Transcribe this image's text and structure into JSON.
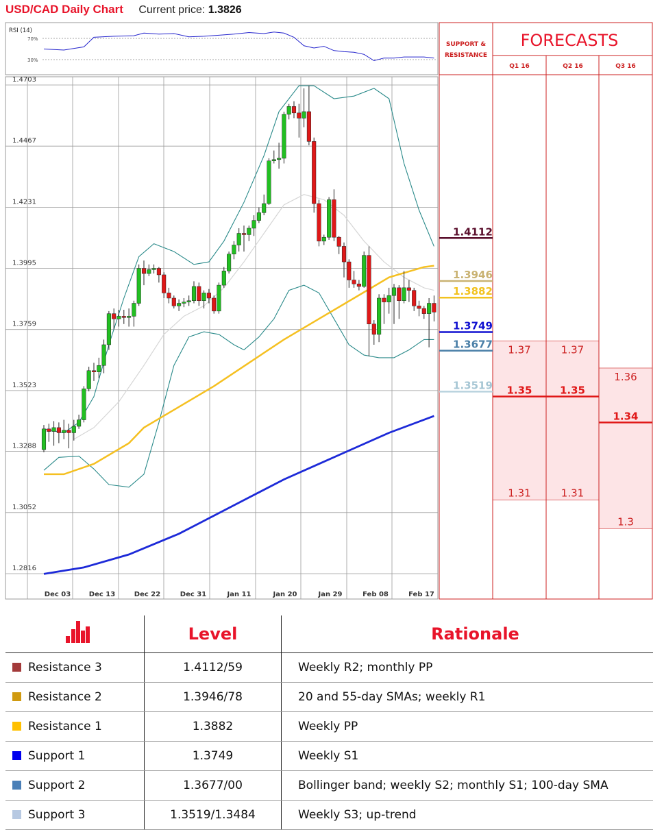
{
  "header": {
    "title": "USD/CAD Daily Chart",
    "current_price_label": "Current price:",
    "current_price": "1.3826"
  },
  "chart_data": {
    "type": "candlestick",
    "title": "USD/CAD Daily Chart",
    "y_ticks": [
      "1.4703",
      "1.4467",
      "1.4231",
      "1.3995",
      "1.3759",
      "1.3523",
      "1.3288",
      "1.3052",
      "1.2816"
    ],
    "ylim": [
      1.2816,
      1.4703
    ],
    "x_ticks": [
      "Dec 03",
      "Dec 13",
      "Dec 22",
      "Dec 31",
      "Jan 11",
      "Jan 20",
      "Jan 29",
      "Feb 08",
      "Feb 17"
    ],
    "grid": true,
    "candles": [
      [
        1.3295,
        1.3375,
        1.339,
        1.3285
      ],
      [
        1.3375,
        1.3365,
        1.3395,
        1.3325
      ],
      [
        1.3365,
        1.338,
        1.3405,
        1.331
      ],
      [
        1.338,
        1.336,
        1.34,
        1.332
      ],
      [
        1.336,
        1.337,
        1.341,
        1.3335
      ],
      [
        1.337,
        1.336,
        1.3395,
        1.33
      ],
      [
        1.336,
        1.3385,
        1.341,
        1.333
      ],
      [
        1.3385,
        1.341,
        1.343,
        1.3375
      ],
      [
        1.341,
        1.353,
        1.354,
        1.34
      ],
      [
        1.353,
        1.36,
        1.3615,
        1.352
      ],
      [
        1.36,
        1.3595,
        1.363,
        1.356
      ],
      [
        1.3595,
        1.362,
        1.365,
        1.357
      ],
      [
        1.362,
        1.37,
        1.372,
        1.359
      ],
      [
        1.37,
        1.382,
        1.383,
        1.368
      ],
      [
        1.382,
        1.38,
        1.384,
        1.376
      ],
      [
        1.38,
        1.381,
        1.3835,
        1.377
      ],
      [
        1.381,
        1.3805,
        1.3835,
        1.378
      ],
      [
        1.3805,
        1.381,
        1.384,
        1.377
      ],
      [
        1.381,
        1.386,
        1.387,
        1.377
      ],
      [
        1.386,
        1.3995,
        1.401,
        1.385
      ],
      [
        1.3995,
        1.3975,
        1.4025,
        1.393
      ],
      [
        1.3975,
        1.399,
        1.401,
        1.3965
      ],
      [
        1.399,
        1.3995,
        1.401,
        1.3975
      ],
      [
        1.3995,
        1.397,
        1.4,
        1.394
      ],
      [
        1.397,
        1.39,
        1.398,
        1.388
      ],
      [
        1.39,
        1.388,
        1.392,
        1.386
      ],
      [
        1.388,
        1.385,
        1.389,
        1.384
      ],
      [
        1.385,
        1.386,
        1.3875,
        1.383
      ],
      [
        1.386,
        1.3865,
        1.388,
        1.3845
      ],
      [
        1.3865,
        1.387,
        1.389,
        1.385
      ],
      [
        1.387,
        1.3925,
        1.3945,
        1.386
      ],
      [
        1.3925,
        1.387,
        1.394,
        1.385
      ],
      [
        1.387,
        1.39,
        1.391,
        1.384
      ],
      [
        1.39,
        1.388,
        1.3915,
        1.386
      ],
      [
        1.388,
        1.383,
        1.389,
        1.382
      ],
      [
        1.383,
        1.393,
        1.394,
        1.382
      ],
      [
        1.393,
        1.3985,
        1.4,
        1.392
      ],
      [
        1.3985,
        1.405,
        1.406,
        1.3975
      ],
      [
        1.405,
        1.4085,
        1.41,
        1.403
      ],
      [
        1.4085,
        1.413,
        1.415,
        1.406
      ],
      [
        1.413,
        1.4125,
        1.416,
        1.406
      ],
      [
        1.4125,
        1.415,
        1.416,
        1.41
      ],
      [
        1.415,
        1.418,
        1.42,
        1.412
      ],
      [
        1.418,
        1.421,
        1.423,
        1.417
      ],
      [
        1.421,
        1.4245,
        1.428,
        1.42
      ],
      [
        1.4245,
        1.441,
        1.442,
        1.424
      ],
      [
        1.441,
        1.4415,
        1.445,
        1.44
      ],
      [
        1.4415,
        1.442,
        1.448,
        1.438
      ],
      [
        1.442,
        1.459,
        1.46,
        1.44
      ],
      [
        1.459,
        1.462,
        1.463,
        1.457
      ],
      [
        1.462,
        1.4595,
        1.464,
        1.4575
      ],
      [
        1.4595,
        1.4575,
        1.463,
        1.45
      ],
      [
        1.4575,
        1.46,
        1.469,
        1.454
      ],
      [
        1.46,
        1.4485,
        1.47,
        1.447
      ],
      [
        1.4485,
        1.4245,
        1.45,
        1.421
      ],
      [
        1.4245,
        1.41,
        1.426,
        1.408
      ],
      [
        1.41,
        1.4115,
        1.4125,
        1.4085
      ],
      [
        1.4115,
        1.426,
        1.427,
        1.4105
      ],
      [
        1.426,
        1.4115,
        1.43,
        1.41
      ],
      [
        1.4115,
        1.408,
        1.412,
        1.405
      ],
      [
        1.408,
        1.402,
        1.4095,
        1.396
      ],
      [
        1.402,
        1.395,
        1.403,
        1.392
      ],
      [
        1.395,
        1.3935,
        1.3985,
        1.392
      ],
      [
        1.3935,
        1.3925,
        1.395,
        1.391
      ],
      [
        1.3925,
        1.4045,
        1.406,
        1.392
      ],
      [
        1.4045,
        1.378,
        1.408,
        1.3655
      ],
      [
        1.378,
        1.374,
        1.3795,
        1.37
      ],
      [
        1.374,
        1.388,
        1.3895,
        1.371
      ],
      [
        1.388,
        1.3865,
        1.3895,
        1.378
      ],
      [
        1.3865,
        1.389,
        1.392,
        1.382
      ],
      [
        1.389,
        1.392,
        1.3935,
        1.378
      ],
      [
        1.392,
        1.387,
        1.393,
        1.38
      ],
      [
        1.387,
        1.392,
        1.3985,
        1.386
      ],
      [
        1.392,
        1.391,
        1.395,
        1.3865
      ],
      [
        1.391,
        1.385,
        1.392,
        1.383
      ],
      [
        1.385,
        1.384,
        1.387,
        1.381
      ],
      [
        1.384,
        1.382,
        1.385,
        1.38
      ],
      [
        1.382,
        1.386,
        1.388,
        1.369
      ],
      [
        1.386,
        1.3826,
        1.389,
        1.379
      ]
    ],
    "sma_55": [
      [
        0,
        1.32
      ],
      [
        4,
        1.32
      ],
      [
        10,
        1.324
      ],
      [
        17,
        1.332
      ],
      [
        20,
        1.338
      ],
      [
        27,
        1.346
      ],
      [
        34,
        1.354
      ],
      [
        41,
        1.363
      ],
      [
        48,
        1.372
      ],
      [
        55,
        1.38
      ],
      [
        62,
        1.388
      ],
      [
        69,
        1.396
      ],
      [
        76,
        1.4
      ],
      [
        78,
        1.4005
      ]
    ],
    "sma_200": [
      [
        0,
        1.2815
      ],
      [
        8,
        1.284
      ],
      [
        17,
        1.289
      ],
      [
        27,
        1.297
      ],
      [
        34,
        1.304
      ],
      [
        41,
        1.311
      ],
      [
        48,
        1.318
      ],
      [
        55,
        1.324
      ],
      [
        62,
        1.33
      ],
      [
        69,
        1.336
      ],
      [
        78,
        1.3425
      ]
    ],
    "sma_20": [
      [
        6,
        1.3335
      ],
      [
        10,
        1.338
      ],
      [
        15,
        1.348
      ],
      [
        20,
        1.362
      ],
      [
        24,
        1.374
      ],
      [
        28,
        1.381
      ],
      [
        32,
        1.385
      ],
      [
        36,
        1.392
      ],
      [
        40,
        1.402
      ],
      [
        44,
        1.413
      ],
      [
        48,
        1.424
      ],
      [
        52,
        1.428
      ],
      [
        56,
        1.426
      ],
      [
        60,
        1.42
      ],
      [
        64,
        1.41
      ],
      [
        68,
        1.402
      ],
      [
        72,
        1.396
      ],
      [
        76,
        1.392
      ],
      [
        78,
        1.391
      ]
    ],
    "bollinger_upper": [
      [
        0,
        1.3375
      ],
      [
        4,
        1.336
      ],
      [
        7,
        1.34
      ],
      [
        10,
        1.35
      ],
      [
        13,
        1.37
      ],
      [
        16,
        1.388
      ],
      [
        19,
        1.404
      ],
      [
        22,
        1.409
      ],
      [
        26,
        1.406
      ],
      [
        30,
        1.401
      ],
      [
        33,
        1.402
      ],
      [
        36,
        1.41
      ],
      [
        40,
        1.425
      ],
      [
        44,
        1.443
      ],
      [
        47,
        1.46
      ],
      [
        51,
        1.47
      ],
      [
        54,
        1.47
      ],
      [
        58,
        1.465
      ],
      [
        62,
        1.466
      ],
      [
        66,
        1.469
      ],
      [
        69,
        1.465
      ],
      [
        72,
        1.44
      ],
      [
        75,
        1.422
      ],
      [
        78,
        1.408
      ]
    ],
    "bollinger_lower": [
      [
        0,
        1.3215
      ],
      [
        3,
        1.3265
      ],
      [
        7,
        1.327
      ],
      [
        10,
        1.322
      ],
      [
        13,
        1.316
      ],
      [
        17,
        1.315
      ],
      [
        20,
        1.32
      ],
      [
        23,
        1.34
      ],
      [
        26,
        1.362
      ],
      [
        29,
        1.373
      ],
      [
        32,
        1.375
      ],
      [
        35,
        1.374
      ],
      [
        38,
        1.37
      ],
      [
        40,
        1.368
      ],
      [
        43,
        1.373
      ],
      [
        46,
        1.38
      ],
      [
        49,
        1.391
      ],
      [
        52,
        1.393
      ],
      [
        55,
        1.39
      ],
      [
        58,
        1.38
      ],
      [
        61,
        1.37
      ],
      [
        64,
        1.366
      ],
      [
        67,
        1.365
      ],
      [
        70,
        1.365
      ],
      [
        73,
        1.368
      ],
      [
        76,
        1.372
      ],
      [
        78,
        1.372
      ]
    ],
    "rsi": {
      "label": "RSI (14)",
      "levels": [
        "70%",
        "30%"
      ],
      "values": [
        [
          0,
          50
        ],
        [
          4,
          48
        ],
        [
          8,
          54
        ],
        [
          10,
          72
        ],
        [
          14,
          74
        ],
        [
          18,
          75
        ],
        [
          20,
          80
        ],
        [
          23,
          78
        ],
        [
          26,
          79
        ],
        [
          29,
          73
        ],
        [
          32,
          74
        ],
        [
          35,
          76
        ],
        [
          38,
          78
        ],
        [
          41,
          81
        ],
        [
          44,
          79
        ],
        [
          46,
          82
        ],
        [
          48,
          80
        ],
        [
          50,
          72
        ],
        [
          52,
          56
        ],
        [
          54,
          52
        ],
        [
          56,
          55
        ],
        [
          58,
          47
        ],
        [
          60,
          45
        ],
        [
          62,
          44
        ],
        [
          64,
          40
        ],
        [
          66,
          28
        ],
        [
          68,
          33
        ],
        [
          70,
          33
        ],
        [
          72,
          35
        ],
        [
          74,
          35
        ],
        [
          76,
          35
        ],
        [
          78,
          33
        ]
      ]
    }
  },
  "sr_panel": {
    "header": "SUPPORT & RESISTANCE",
    "levels": [
      {
        "value": "1.4112",
        "color": "#5a0f2c",
        "text_color": "#5a0f2c",
        "y": 1.4112
      },
      {
        "value": "1.3946",
        "color": "#c9b272",
        "text_color": "#c9b272",
        "y": 1.3946
      },
      {
        "value": "1.3882",
        "color": "#f2c21f",
        "text_color": "#f2c21f",
        "y": 1.3882
      },
      {
        "value": "1.3749",
        "color": "#1010d0",
        "text_color": "#1010d0",
        "y": 1.3749
      },
      {
        "value": "1.3677",
        "color": "#4a7fa7",
        "text_color": "#4a7fa7",
        "y": 1.3677
      },
      {
        "value": "1.3519",
        "color": "#b8d2de",
        "text_color": "#a6c6d4",
        "y": 1.3519
      }
    ]
  },
  "forecasts": {
    "title": "FORECASTS",
    "columns": [
      {
        "label": "Q1 16",
        "high": "1.37",
        "mid": "1.35",
        "low": "1.31",
        "high_y": 1.3715,
        "mid_y": 1.35,
        "low_y": 1.31
      },
      {
        "label": "Q2 16",
        "high": "1.37",
        "mid": "1.35",
        "low": "1.31",
        "high_y": 1.3715,
        "mid_y": 1.35,
        "low_y": 1.31
      },
      {
        "label": "Q3 16",
        "high": "1.36",
        "mid": "1.34",
        "low": "1.3",
        "high_y": 1.361,
        "mid_y": 1.34,
        "low_y": 1.299
      }
    ]
  },
  "table": {
    "headers": [
      "",
      "Level",
      "Rationale"
    ],
    "header_icon": "bar-chart-icon",
    "rows": [
      {
        "name": "Resistance 3",
        "color": "#a33a3a",
        "level": "1.4112/59",
        "rationale": "Weekly R2; monthly PP"
      },
      {
        "name": "Resistance 2",
        "color": "#d09a10",
        "level": "1.3946/78",
        "rationale": "20 and 55-day SMAs; weekly R1"
      },
      {
        "name": "Resistance 1",
        "color": "#ffc000",
        "level": "1.3882",
        "rationale": "Weekly PP"
      },
      {
        "name": "Support 1",
        "color": "#0000ee",
        "level": "1.3749",
        "rationale": "Weekly S1"
      },
      {
        "name": "Support 2",
        "color": "#4a7fb7",
        "level": "1.3677/00",
        "rationale": "Bollinger band; weekly S2; monthly S1; 100-day SMA"
      },
      {
        "name": "Support 3",
        "color": "#b7c9e2",
        "level": "1.3519/1.3484",
        "rationale": "Weekly S3; up-trend"
      }
    ]
  }
}
